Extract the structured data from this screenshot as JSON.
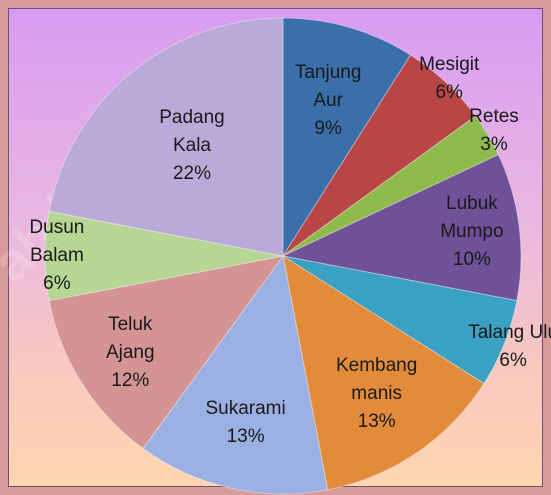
{
  "chart_data": {
    "type": "pie",
    "categories": [
      "Tanjung Aur",
      "Mesigit",
      "Retes",
      "Lubuk Mumpo",
      "Talang Ulu",
      "Kembang manis",
      "Sukarami",
      "Teluk Ajang",
      "Dusun Balam",
      "Padang Kala"
    ],
    "values": [
      9,
      6,
      3,
      10,
      6,
      13,
      13,
      12,
      6,
      22
    ],
    "value_labels": [
      "9%",
      "6%",
      "3%",
      "10%",
      "6%",
      "13%",
      "13%",
      "12%",
      "6%",
      "22%"
    ],
    "colors": [
      "#3b6fa9",
      "#b94646",
      "#8fba4c",
      "#6f5197",
      "#3ba1c2",
      "#e28b3b",
      "#9bb0e2",
      "#d59494",
      "#b6d694",
      "#baaad9"
    ],
    "watermark": "ab.bps.go.id"
  }
}
